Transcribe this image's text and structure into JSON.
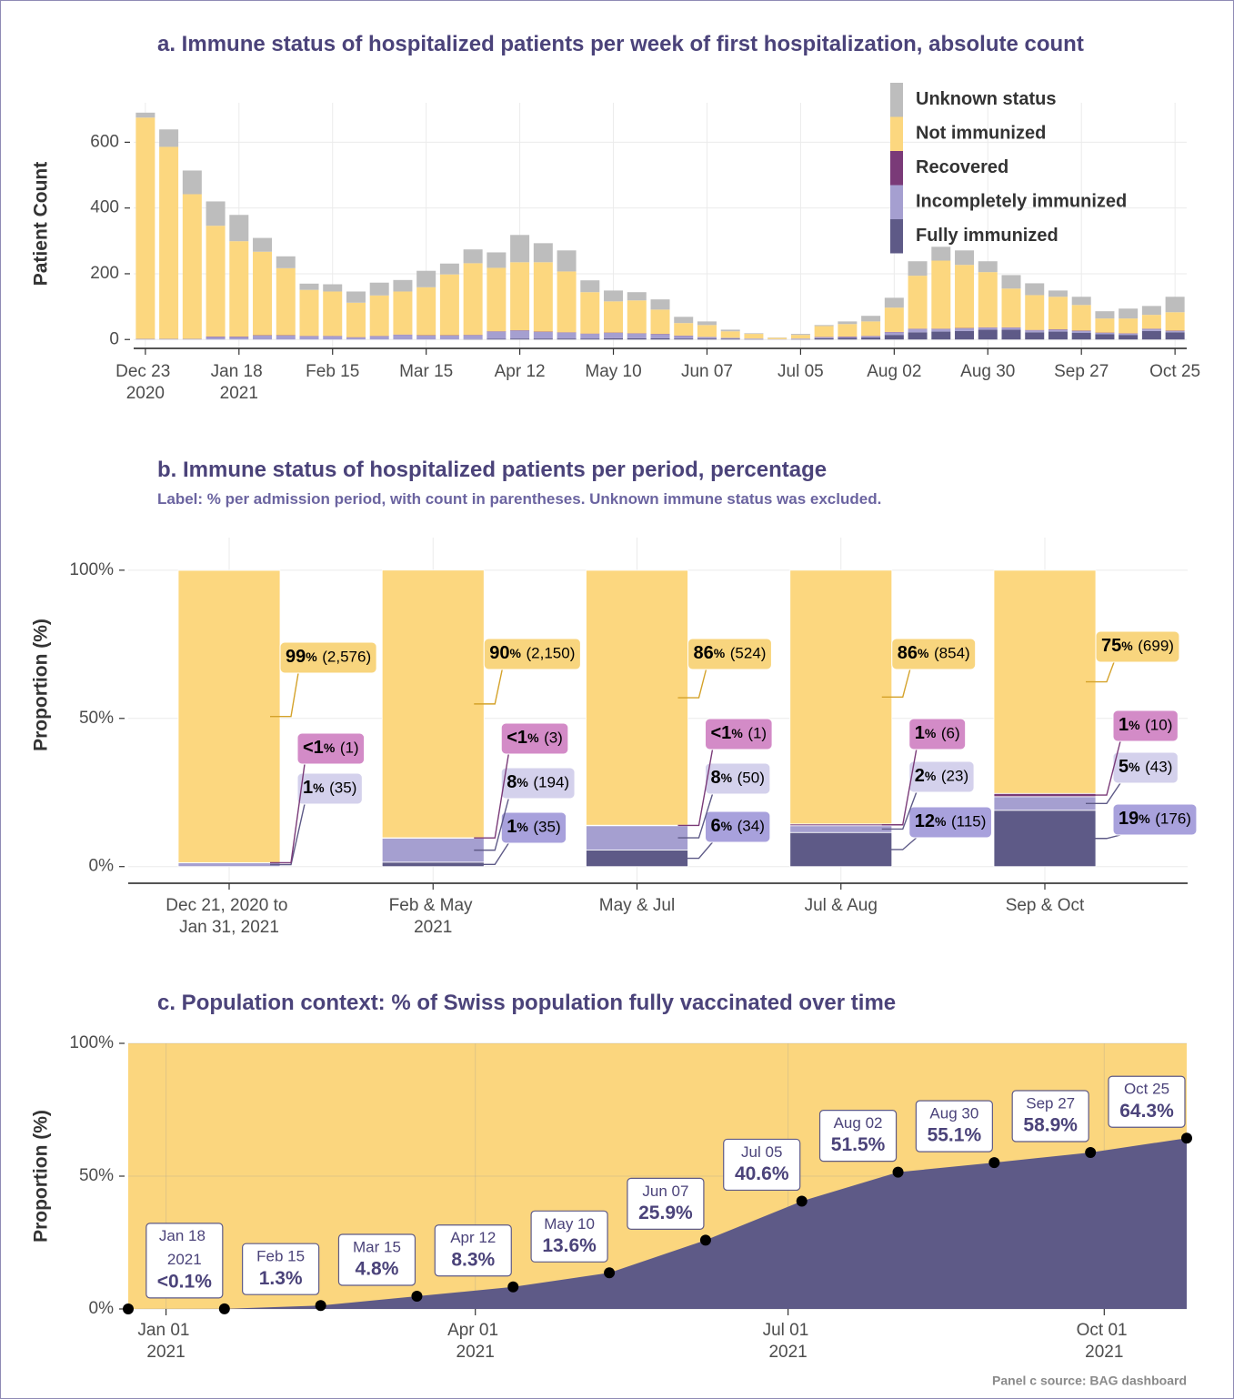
{
  "chart_data": [
    {
      "type": "bar",
      "title": "a. Immune status of hospitalized patients per week of first hospitalization, absolute count",
      "y_label": "Patient Count",
      "categories": [
        "Dec 23\n2020",
        null,
        null,
        null,
        "Jan 18\n2021",
        null,
        null,
        null,
        "Feb 15",
        null,
        null,
        null,
        "Mar 15",
        null,
        null,
        null,
        "Apr 12",
        null,
        null,
        null,
        "May 10",
        null,
        null,
        null,
        "Jun 07",
        null,
        null,
        null,
        "Jul 05",
        null,
        null,
        null,
        "Aug 02",
        null,
        null,
        null,
        "Aug 30",
        null,
        null,
        null,
        "Sep 27",
        null,
        null,
        null,
        "Oct 25"
      ],
      "series": [
        {
          "name": "Fully immunized",
          "color": "#5e5a87",
          "values": [
            0,
            0,
            0,
            0,
            0,
            0,
            0,
            0,
            0,
            0,
            0,
            0,
            0,
            0,
            1,
            2,
            3,
            3,
            3,
            3,
            4,
            4,
            4,
            3,
            3,
            2,
            1,
            0,
            1,
            4,
            5,
            6,
            14,
            22,
            24,
            26,
            30,
            30,
            22,
            24,
            20,
            16,
            14,
            26,
            22
          ]
        },
        {
          "name": "Incompletely immunized",
          "color": "#a59fd0",
          "values": [
            2,
            2,
            2,
            8,
            8,
            12,
            12,
            10,
            10,
            6,
            10,
            14,
            12,
            12,
            12,
            22,
            24,
            20,
            18,
            14,
            16,
            14,
            12,
            8,
            5,
            3,
            2,
            1,
            2,
            3,
            3,
            4,
            8,
            10,
            8,
            8,
            6,
            6,
            6,
            6,
            6,
            4,
            4,
            6,
            4
          ]
        },
        {
          "name": "Recovered",
          "color": "#7a3a78",
          "values": [
            0,
            0,
            0,
            1,
            1,
            1,
            1,
            1,
            1,
            1,
            1,
            1,
            1,
            1,
            1,
            1,
            1,
            1,
            1,
            1,
            1,
            1,
            1,
            1,
            0,
            0,
            0,
            0,
            0,
            1,
            1,
            1,
            1,
            1,
            1,
            1,
            1,
            1,
            1,
            1,
            1,
            1,
            1,
            1,
            1
          ]
        },
        {
          "name": "Not immunized",
          "color": "#fcd77f",
          "values": [
            673,
            584,
            440,
            337,
            290,
            254,
            204,
            140,
            135,
            105,
            123,
            131,
            146,
            185,
            218,
            193,
            207,
            211,
            185,
            126,
            95,
            100,
            74,
            38,
            36,
            20,
            14,
            4,
            11,
            33,
            38,
            44,
            74,
            161,
            207,
            192,
            168,
            118,
            106,
            99,
            78,
            43,
            45,
            42,
            56
          ]
        },
        {
          "name": "Unknown status",
          "color": "#bdbdbd",
          "values": [
            15,
            53,
            72,
            74,
            80,
            42,
            36,
            19,
            22,
            34,
            39,
            35,
            50,
            33,
            42,
            47,
            83,
            58,
            64,
            36,
            33,
            25,
            31,
            19,
            11,
            5,
            2,
            1,
            3,
            3,
            8,
            17,
            30,
            44,
            42,
            44,
            33,
            41,
            36,
            19,
            25,
            22,
            30,
            27,
            47
          ]
        }
      ],
      "ylim": [
        -27,
        720
      ],
      "yticks": [
        0,
        200,
        400,
        600
      ],
      "grid": true,
      "legend": "top-right"
    },
    {
      "type": "bar",
      "title": "b. Immune status of hospitalized patients per period, percentage",
      "subtitle": "Label: % per admission period, with count in parentheses. Unknown immune status was excluded.",
      "y_label": "Proportion (%)",
      "categories": [
        "Dec 21, 2020 to\nJan 31, 2021",
        "Feb & May\n2021",
        "May & Jul",
        "Jul & Aug",
        "Sep & Oct"
      ],
      "series": [
        {
          "name": "Fully immunized",
          "color": "#5e5a87",
          "label_color": "#a8a1dc",
          "line_color": "#5e5a87",
          "values": [
            0,
            1.5,
            5.6,
            11.5,
            19.0
          ],
          "value_labels": [
            null,
            "1%",
            "6%",
            "12%",
            "19%"
          ],
          "count_labels": [
            null,
            "(35)",
            "(34)",
            "(115)",
            "(176)"
          ]
        },
        {
          "name": "Incompletely immunized",
          "color": "#a59fd0",
          "label_color": "#d4d1ec",
          "line_color": "#5e5a87",
          "values": [
            1.3,
            8.1,
            8.2,
            2.3,
            4.6
          ],
          "value_labels": [
            "1%",
            "8%",
            "8%",
            "2%",
            "5%"
          ],
          "count_labels": [
            "(35)",
            "(194)",
            "(50)",
            "(23)",
            "(43)"
          ]
        },
        {
          "name": "Recovered",
          "color": "#7a3a78",
          "label_color": "#d38bc7",
          "line_color": "#7a3a78",
          "values": [
            0.04,
            0.13,
            0.16,
            0.6,
            1.08
          ],
          "value_labels": [
            "<1%",
            "<1%",
            "<1%",
            "1%",
            "1%"
          ],
          "count_labels": [
            "(1)",
            "(3)",
            "(1)",
            "(6)",
            "(10)"
          ]
        },
        {
          "name": "Not immunized",
          "color": "#fcd77f",
          "label_color": "#f8d57e",
          "line_color": "#d4a22a",
          "values": [
            98.6,
            90.3,
            86.0,
            85.6,
            75.3
          ],
          "value_labels": [
            "99%",
            "90%",
            "86%",
            "86%",
            "75%"
          ],
          "count_labels": [
            "(2,576)",
            "(2,150)",
            "(524)",
            "(854)",
            "(699)"
          ]
        }
      ],
      "ylim": [
        -5,
        111
      ],
      "yticks": [
        {
          "value": 0,
          "label": "0%"
        },
        {
          "value": 50,
          "label": "50%"
        },
        {
          "value": 100,
          "label": "100%"
        }
      ],
      "grid": true
    },
    {
      "type": "area",
      "title": "c. Population context: % of Swiss population fully vaccinated over time",
      "y_label": "Proportion (%)",
      "source": "Panel c source: BAG dashboard",
      "color": "#5e5a87",
      "background_color": "#fbd67e",
      "x": [
        "2020-12-21",
        "2021-01-18",
        "2021-02-15",
        "2021-03-15",
        "2021-04-12",
        "2021-05-10",
        "2021-06-07",
        "2021-07-05",
        "2021-08-02",
        "2021-08-30",
        "2021-09-27",
        "2021-10-25"
      ],
      "values": [
        0,
        0.05,
        1.3,
        4.8,
        8.3,
        13.6,
        25.9,
        40.6,
        51.5,
        55.1,
        58.9,
        64.3
      ],
      "point_labels": [
        null,
        "Jan 18\n2021",
        "Feb 15",
        "Mar 15",
        "Apr 12",
        "May 10",
        "Jun 07",
        "Jul 05",
        "Aug 02",
        "Aug 30",
        "Sep 27",
        "Oct 25"
      ],
      "value_labels": [
        null,
        "<0.1%",
        "1.3%",
        "4.8%",
        "8.3%",
        "13.6%",
        "25.9%",
        "40.6%",
        "51.5%",
        "55.1%",
        "58.9%",
        "64.3%"
      ],
      "xlim": [
        "2020-12-21",
        "2021-10-25"
      ],
      "xticks": [
        {
          "value": "2021-01-01",
          "label": "Jan 01\n2021"
        },
        {
          "value": "2021-04-01",
          "label": "Apr 01\n2021"
        },
        {
          "value": "2021-07-01",
          "label": "Jul 01\n2021"
        },
        {
          "value": "2021-10-01",
          "label": "Oct 01\n2021"
        }
      ],
      "ylim": [
        0,
        100
      ],
      "yticks": [
        {
          "value": 0,
          "label": "0%"
        },
        {
          "value": 50,
          "label": "50%"
        },
        {
          "value": 100,
          "label": "100%"
        }
      ],
      "grid": true
    }
  ]
}
